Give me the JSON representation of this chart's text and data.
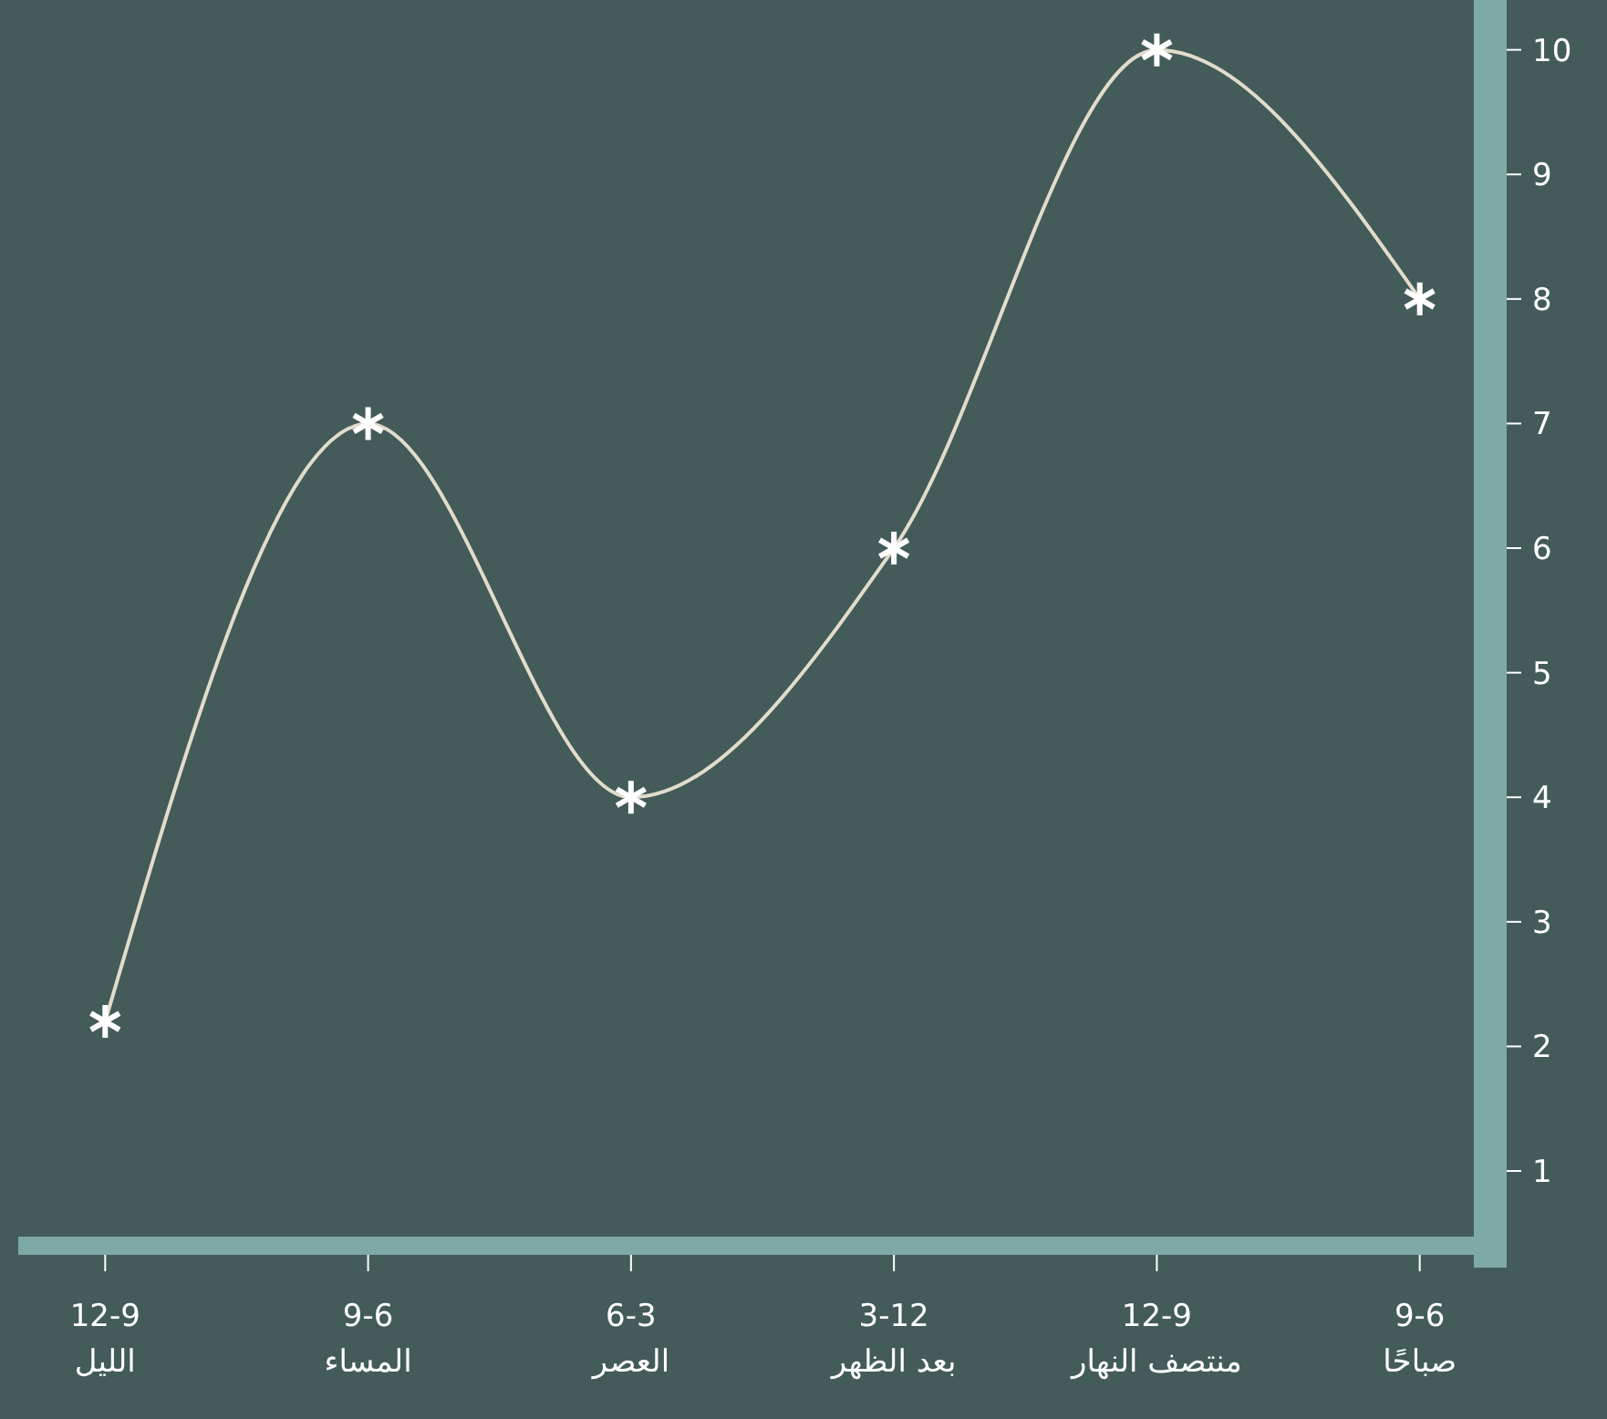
{
  "chart_data": {
    "type": "line",
    "categories": [
      "12-9\nالليل",
      "9-6\nالمساء",
      "6-3\nالعصر",
      "3-12\nبعد الظهر",
      "12-9\nمنتصف النهار",
      "9-6\nصباحًا"
    ],
    "values": [
      2.2,
      7,
      4,
      6,
      10,
      8
    ],
    "color": "#e3dccb",
    "ylim": [
      0.4,
      10.4
    ],
    "yticks": [
      1,
      2,
      3,
      4,
      5,
      6,
      7,
      8,
      9,
      10
    ],
    "marker": "cross",
    "grid": false
  }
}
